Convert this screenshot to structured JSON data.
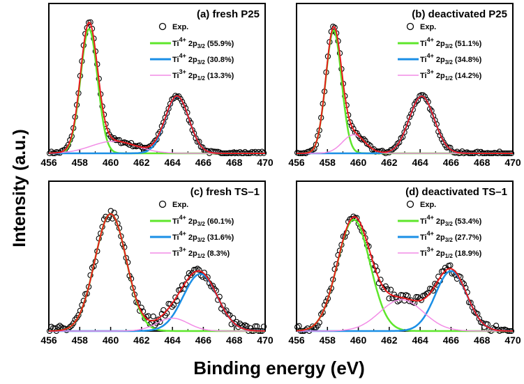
{
  "chart_data": {
    "type": "line",
    "xlabel": "Binding energy (eV)",
    "ylabel": "Intensity (a.u.)",
    "xlim": [
      456,
      470
    ],
    "xticks": [
      "456",
      "458",
      "460",
      "462",
      "464",
      "466",
      "468",
      "470"
    ],
    "colors": {
      "exp": "#000000",
      "fit": "#e8191c",
      "ti4_a": "#5ee62b",
      "ti4_b": "#1a8fe6",
      "ti3": "#f28ce6"
    },
    "legend_exp": "Exp.",
    "panels": [
      {
        "title": "(a) fresh P25",
        "legend": [
          {
            "ion": "Ti",
            "charge": "4+",
            "orbital": "2p",
            "sub": "3/2",
            "pct": "(55.9%)"
          },
          {
            "ion": "Ti",
            "charge": "4+",
            "orbital": "2p",
            "sub": "3/2",
            "pct": "(30.8%)"
          },
          {
            "ion": "Ti",
            "charge": "3+",
            "orbital": "2p",
            "sub": "1/2",
            "pct": "(13.3%)"
          }
        ],
        "peaks": [
          {
            "center": 458.6,
            "height": 0.87,
            "fwhm": 1.3
          },
          {
            "center": 464.3,
            "height": 0.4,
            "fwhm": 1.8
          },
          {
            "center": 460.2,
            "height": 0.085,
            "fwhm": 3.4
          }
        ],
        "tail": [
          {
            "x": 470,
            "y": 0.005
          }
        ]
      },
      {
        "title": "(b) deactivated P25",
        "legend": [
          {
            "ion": "Ti",
            "charge": "4+",
            "orbital": "2p",
            "sub": "3/2",
            "pct": "(51.1%)"
          },
          {
            "ion": "Ti",
            "charge": "4+",
            "orbital": "2p",
            "sub": "3/2",
            "pct": "(34.8%)"
          },
          {
            "ion": "Ti",
            "charge": "3+",
            "orbital": "2p",
            "sub": "1/2",
            "pct": "(14.2%)"
          }
        ],
        "peaks": [
          {
            "center": 458.4,
            "height": 0.86,
            "fwhm": 1.2
          },
          {
            "center": 464.1,
            "height": 0.4,
            "fwhm": 1.9
          },
          {
            "center": 459.7,
            "height": 0.13,
            "fwhm": 1.7
          }
        ]
      },
      {
        "title": "(c) fresh TS–1",
        "legend": [
          {
            "ion": "Ti",
            "charge": "4+",
            "orbital": "2p",
            "sub": "3/2",
            "pct": "(60.1%)"
          },
          {
            "ion": "Ti",
            "charge": "4+",
            "orbital": "2p",
            "sub": "3/2",
            "pct": "(31.6%)"
          },
          {
            "ion": "Ti",
            "charge": "3+",
            "orbital": "2p",
            "sub": "1/2",
            "pct": "(8.3%)"
          }
        ],
        "peaks": [
          {
            "center": 460.0,
            "height": 0.82,
            "fwhm": 2.4
          },
          {
            "center": 465.8,
            "height": 0.4,
            "fwhm": 2.6
          },
          {
            "center": 464.0,
            "height": 0.09,
            "fwhm": 2.4
          }
        ]
      },
      {
        "title": "(d) deactivated TS–1",
        "legend": [
          {
            "ion": "Ti",
            "charge": "4+",
            "orbital": "2p",
            "sub": "3/2",
            "pct": "(53.4%)"
          },
          {
            "ion": "Ti",
            "charge": "4+",
            "orbital": "2p",
            "sub": "3/2",
            "pct": "(27.7%)"
          },
          {
            "ion": "Ti",
            "charge": "3+",
            "orbital": "2p",
            "sub": "1/2",
            "pct": "(18.9%)"
          }
        ],
        "peaks": [
          {
            "center": 459.7,
            "height": 0.78,
            "fwhm": 2.5
          },
          {
            "center": 466.0,
            "height": 0.42,
            "fwhm": 2.4
          },
          {
            "center": 462.8,
            "height": 0.22,
            "fwhm": 3.3
          }
        ]
      }
    ]
  }
}
